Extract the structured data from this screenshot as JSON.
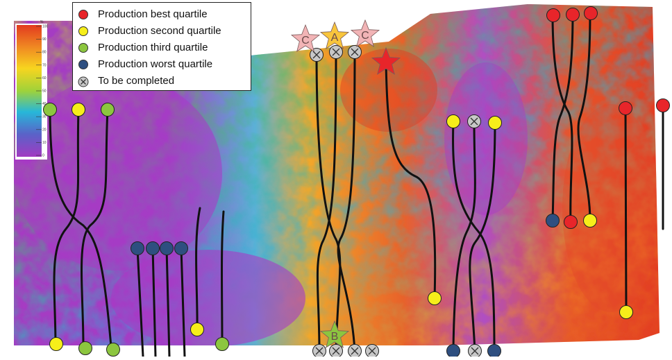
{
  "legend": {
    "items": [
      {
        "label": "Production best quartile",
        "color": "#e8252a"
      },
      {
        "label": "Production second quartile",
        "color": "#f6ee1a"
      },
      {
        "label": "Production third quartile",
        "color": "#8cc63f"
      },
      {
        "label": "Production worst quartile",
        "color": "#2e4f80"
      },
      {
        "label": "To be completed",
        "color": "#c8c8c8",
        "icon": "x-circle-icon"
      }
    ]
  },
  "colorbar": {
    "unit": "%",
    "ticks": [
      "100",
      "90",
      "80",
      "70",
      "60",
      "50",
      "40",
      "30",
      "20",
      "10",
      "0"
    ],
    "colors": [
      "#e23a1f",
      "#f08a22",
      "#f7d51f",
      "#9fd23a",
      "#27b7d9",
      "#5a62c8",
      "#a23ac2"
    ]
  },
  "star_labels": {
    "c_left": "C",
    "a": "A",
    "c_right": "C",
    "b": "B",
    "target": ""
  },
  "colors": {
    "best": "#e8252a",
    "second": "#f6ee1a",
    "third": "#8cc63f",
    "worst": "#2e4f80",
    "complete": "#c8c8c8",
    "star_pink": "#f2b4b6",
    "star_gold": "#f8c53c",
    "star_green": "#8cc63f",
    "star_red": "#e8252a",
    "map_low": "#a63bc2",
    "map_high": "#e44a22"
  }
}
